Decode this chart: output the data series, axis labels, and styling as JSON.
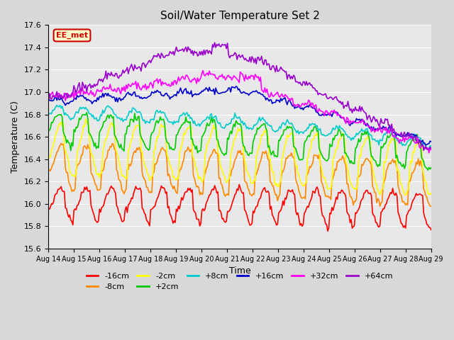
{
  "title": "Soil/Water Temperature Set 2",
  "xlabel": "Time",
  "ylabel": "Temperature (C)",
  "ylim": [
    15.6,
    17.6
  ],
  "xlim": [
    0,
    15
  ],
  "x_tick_labels": [
    "Aug 14",
    "Aug 15",
    "Aug 16",
    "Aug 17",
    "Aug 18",
    "Aug 19",
    "Aug 20",
    "Aug 21",
    "Aug 22",
    "Aug 23",
    "Aug 24",
    "Aug 25",
    "Aug 26",
    "Aug 27",
    "Aug 28",
    "Aug 29"
  ],
  "background_color": "#e8e8e8",
  "plot_bg_color": "#e8e8e8",
  "legend_label": "EE_met",
  "series": [
    {
      "label": "-16cm",
      "color": "#ff0000"
    },
    {
      "label": "-8cm",
      "color": "#ff8800"
    },
    {
      "label": "-2cm",
      "color": "#ffff00"
    },
    {
      "label": "+2cm",
      "color": "#00cc00"
    },
    {
      "label": "+8cm",
      "color": "#00cccc"
    },
    {
      "label": "+16cm",
      "color": "#0000cc"
    },
    {
      "label": "+32cm",
      "color": "#ff00ff"
    },
    {
      "label": "+64cm",
      "color": "#9900cc"
    }
  ]
}
